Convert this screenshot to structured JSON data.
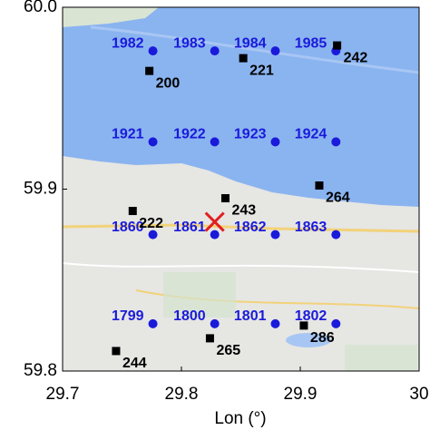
{
  "chart_data": {
    "type": "scatter",
    "xlabel": "Lon (°)",
    "xlim": [
      29.7,
      30
    ],
    "ylim": [
      59.8,
      60
    ],
    "xticks": [
      29.7,
      29.8,
      29.9,
      30
    ],
    "yticks": [
      59.8,
      59.9,
      {
        "value": 60,
        "label": "60.0"
      }
    ],
    "series": [
      {
        "color": "#1a1adb",
        "marker": "circle",
        "x": [
          29.776,
          29.828,
          29.879,
          29.93,
          29.776,
          29.828,
          29.879,
          29.93,
          29.776,
          29.828,
          29.879,
          29.93,
          29.776,
          29.828,
          29.879,
          29.93
        ],
        "values": [
          59.976,
          59.976,
          59.976,
          59.976,
          59.926,
          59.926,
          59.926,
          59.926,
          59.875,
          59.875,
          59.875,
          59.875,
          59.826,
          59.826,
          59.826,
          59.826
        ],
        "labels": [
          "1982",
          "1983",
          "1984",
          "1985",
          "1921",
          "1922",
          "1923",
          "1924",
          "1860",
          "1861",
          "1862",
          "1863",
          "1799",
          "1800",
          "1801",
          "1802"
        ]
      },
      {
        "color": "#000000",
        "marker": "square",
        "x": [
          29.931,
          29.852,
          29.773,
          29.916,
          29.837,
          29.759,
          29.903,
          29.824,
          29.745
        ],
        "values": [
          59.979,
          59.972,
          59.965,
          59.902,
          59.895,
          59.888,
          59.825,
          59.818,
          59.811
        ],
        "labels": [
          "242",
          "221",
          "200",
          "264",
          "243",
          "222",
          "286",
          "265",
          "244"
        ]
      },
      {
        "color": "#e02020",
        "marker": "x",
        "x": [
          29.828
        ],
        "values": [
          59.882
        ]
      }
    ]
  }
}
